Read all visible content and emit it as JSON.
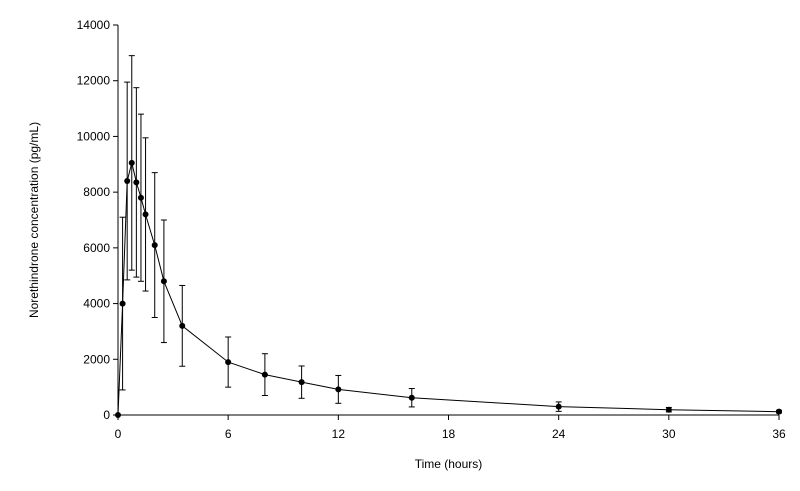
{
  "chart_data": {
    "type": "line",
    "title": "",
    "xlabel": "Time (hours)",
    "ylabel": "Norethindrone concentration (pg/mL)",
    "xlim": [
      0,
      36
    ],
    "ylim": [
      0,
      14000
    ],
    "xticks": [
      0,
      6,
      12,
      18,
      24,
      30,
      36
    ],
    "yticks": [
      0,
      2000,
      4000,
      6000,
      8000,
      10000,
      12000,
      14000
    ],
    "grid": false,
    "legend": "none",
    "series": [
      {
        "color": "#000000",
        "marker": "circle",
        "points": [
          {
            "x": 0,
            "y": 0,
            "sd": 0
          },
          {
            "x": 0.25,
            "y": 4000,
            "sd": 3100
          },
          {
            "x": 0.5,
            "y": 8400,
            "sd": 3550
          },
          {
            "x": 0.75,
            "y": 9050,
            "sd": 3850
          },
          {
            "x": 1,
            "y": 8350,
            "sd": 3400
          },
          {
            "x": 1.25,
            "y": 7800,
            "sd": 3000
          },
          {
            "x": 1.5,
            "y": 7200,
            "sd": 2750
          },
          {
            "x": 2,
            "y": 6100,
            "sd": 2600
          },
          {
            "x": 2.5,
            "y": 4800,
            "sd": 2200
          },
          {
            "x": 3.5,
            "y": 3200,
            "sd": 1450
          },
          {
            "x": 6,
            "y": 1900,
            "sd": 900
          },
          {
            "x": 8,
            "y": 1450,
            "sd": 750
          },
          {
            "x": 10,
            "y": 1180,
            "sd": 580
          },
          {
            "x": 12,
            "y": 920,
            "sd": 500
          },
          {
            "x": 16,
            "y": 620,
            "sd": 330
          },
          {
            "x": 24,
            "y": 300,
            "sd": 170
          },
          {
            "x": 30,
            "y": 190,
            "sd": 80
          },
          {
            "x": 36,
            "y": 120,
            "sd": 50
          }
        ]
      }
    ]
  }
}
